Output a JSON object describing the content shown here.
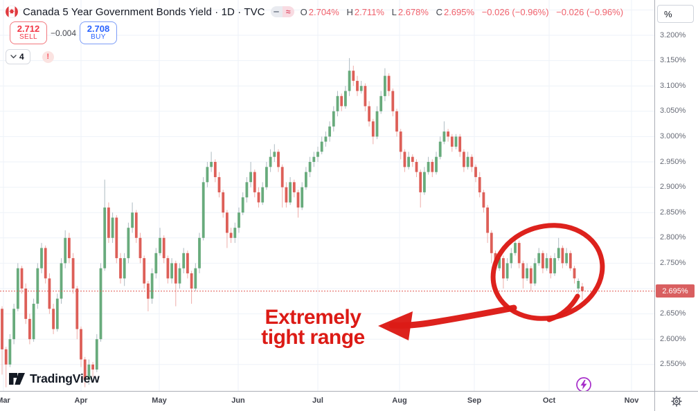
{
  "header": {
    "symbol_title": "Canada 5 Year Government Bonds Yield · 1D · TVC",
    "flag": "canada-flag",
    "ohlc": {
      "o_label": "O",
      "o": "2.704%",
      "h_label": "H",
      "h": "2.711%",
      "l_label": "L",
      "l": "2.678%",
      "c_label": "C",
      "c": "2.695%",
      "change": "−0.026 (−0.96%)",
      "change2": "−0.026 (−0.96%)"
    },
    "sell": {
      "price": "2.712",
      "label": "SELL"
    },
    "spread": "−0.004",
    "buy": {
      "price": "2.708",
      "label": "BUY"
    },
    "drawings_count": "4",
    "alert": "!"
  },
  "annotation": {
    "line1": "Extremely",
    "line2": "tight range"
  },
  "watermark": "TradingView",
  "price_axis": {
    "unit": "%",
    "ticks": [
      "3.200%",
      "3.150%",
      "3.100%",
      "3.050%",
      "3.000%",
      "2.950%",
      "2.900%",
      "2.850%",
      "2.800%",
      "2.750%",
      "2.650%",
      "2.600%",
      "2.550%"
    ],
    "tick_values": [
      3.2,
      3.15,
      3.1,
      3.05,
      3.0,
      2.95,
      2.9,
      2.85,
      2.8,
      2.75,
      2.65,
      2.6,
      2.55
    ],
    "current": "2.695%"
  },
  "time_axis": {
    "months": [
      "Mar",
      "Apr",
      "May",
      "Jun",
      "Jul",
      "Aug",
      "Sep",
      "Oct",
      "Nov"
    ]
  },
  "colors": {
    "up": "#68ab7c",
    "up_wick": "#aebbc2",
    "down": "#dd5f58",
    "down_wick": "#eeaca8",
    "grid": "#eef2f8",
    "axis_text": "#676b76",
    "month_text": "#40434d",
    "current_line": "#e0544e",
    "current_label_bg": "#d95f60",
    "annotation_red": "#dc1b16",
    "sell_red": "#f23645",
    "buy_blue": "#2962ff",
    "value_red": "#f0616c",
    "title_text": "#131722",
    "divider": "#aaadb5",
    "purple": "#a62cc9"
  },
  "chart_data": {
    "type": "candlestick",
    "title": "Canada 5 Year Government Bonds Yield",
    "interval": "1D",
    "exchange": "TVC",
    "unit": "%",
    "current_price": 2.695,
    "last_candle": {
      "open": 2.704,
      "high": 2.711,
      "low": 2.678,
      "close": 2.695,
      "change": -0.026,
      "change_pct": -0.96
    },
    "y_axis": {
      "min": 2.5,
      "max": 3.25,
      "grid_step": 0.05
    },
    "grid_values": [
      3.25,
      3.2,
      3.15,
      3.1,
      3.05,
      3.0,
      2.95,
      2.9,
      2.85,
      2.8,
      2.75,
      2.7,
      2.65,
      2.6,
      2.55
    ],
    "x_range": "Mar to mid-Oct, daily",
    "candles": [
      [
        2.66,
        2.665,
        2.53,
        2.58
      ],
      [
        2.58,
        2.585,
        2.505,
        2.55
      ],
      [
        2.55,
        2.61,
        2.545,
        2.6
      ],
      [
        2.6,
        2.67,
        2.59,
        2.66
      ],
      [
        2.66,
        2.75,
        2.655,
        2.74
      ],
      [
        2.74,
        2.745,
        2.69,
        2.7
      ],
      [
        2.7,
        2.71,
        2.63,
        2.64
      ],
      [
        2.64,
        2.65,
        2.59,
        2.6
      ],
      [
        2.6,
        2.68,
        2.595,
        2.67
      ],
      [
        2.67,
        2.75,
        2.66,
        2.74
      ],
      [
        2.74,
        2.79,
        2.73,
        2.78
      ],
      [
        2.78,
        2.785,
        2.71,
        2.72
      ],
      [
        2.72,
        2.73,
        2.65,
        2.66
      ],
      [
        2.66,
        2.67,
        2.61,
        2.62
      ],
      [
        2.62,
        2.69,
        2.615,
        2.68
      ],
      [
        2.68,
        2.76,
        2.67,
        2.75
      ],
      [
        2.75,
        2.815,
        2.74,
        2.8
      ],
      [
        2.8,
        2.81,
        2.75,
        2.76
      ],
      [
        2.76,
        2.77,
        2.69,
        2.7
      ],
      [
        2.7,
        2.705,
        2.6,
        2.62
      ],
      [
        2.62,
        2.625,
        2.545,
        2.56
      ],
      [
        2.56,
        2.565,
        2.505,
        2.52
      ],
      [
        2.52,
        2.56,
        2.51,
        2.55
      ],
      [
        2.55,
        2.555,
        2.525,
        2.54
      ],
      [
        2.54,
        2.61,
        2.535,
        2.6
      ],
      [
        2.6,
        2.75,
        2.595,
        2.74
      ],
      [
        2.74,
        2.915,
        2.735,
        2.86
      ],
      [
        2.86,
        2.87,
        2.79,
        2.8
      ],
      [
        2.8,
        2.85,
        2.79,
        2.84
      ],
      [
        2.84,
        2.845,
        2.75,
        2.76
      ],
      [
        2.76,
        2.77,
        2.71,
        2.72
      ],
      [
        2.72,
        2.77,
        2.705,
        2.76
      ],
      [
        2.76,
        2.83,
        2.75,
        2.82
      ],
      [
        2.82,
        2.87,
        2.81,
        2.85
      ],
      [
        2.85,
        2.855,
        2.79,
        2.8
      ],
      [
        2.8,
        2.81,
        2.75,
        2.76
      ],
      [
        2.76,
        2.765,
        2.7,
        2.71
      ],
      [
        2.71,
        2.715,
        2.655,
        2.68
      ],
      [
        2.68,
        2.74,
        2.67,
        2.73
      ],
      [
        2.73,
        2.78,
        2.72,
        2.77
      ],
      [
        2.77,
        2.82,
        2.765,
        2.8
      ],
      [
        2.8,
        2.805,
        2.75,
        2.76
      ],
      [
        2.76,
        2.765,
        2.71,
        2.72
      ],
      [
        2.72,
        2.76,
        2.71,
        2.75
      ],
      [
        2.75,
        2.755,
        2.665,
        2.71
      ],
      [
        2.71,
        2.75,
        2.7,
        2.74
      ],
      [
        2.74,
        2.78,
        2.73,
        2.77
      ],
      [
        2.77,
        2.775,
        2.72,
        2.73
      ],
      [
        2.73,
        2.735,
        2.67,
        2.7
      ],
      [
        2.7,
        2.75,
        2.695,
        2.74
      ],
      [
        2.74,
        2.81,
        2.73,
        2.8
      ],
      [
        2.8,
        2.92,
        2.795,
        2.91
      ],
      [
        2.91,
        2.95,
        2.9,
        2.94
      ],
      [
        2.94,
        2.97,
        2.93,
        2.95
      ],
      [
        2.95,
        2.955,
        2.91,
        2.92
      ],
      [
        2.92,
        2.93,
        2.88,
        2.89
      ],
      [
        2.89,
        2.895,
        2.84,
        2.85
      ],
      [
        2.85,
        2.855,
        2.78,
        2.81
      ],
      [
        2.81,
        2.82,
        2.79,
        2.8
      ],
      [
        2.8,
        2.83,
        2.79,
        2.82
      ],
      [
        2.82,
        2.86,
        2.81,
        2.85
      ],
      [
        2.85,
        2.89,
        2.845,
        2.88
      ],
      [
        2.88,
        2.92,
        2.87,
        2.91
      ],
      [
        2.91,
        2.95,
        2.9,
        2.93
      ],
      [
        2.93,
        2.935,
        2.88,
        2.89
      ],
      [
        2.89,
        2.9,
        2.86,
        2.87
      ],
      [
        2.87,
        2.91,
        2.865,
        2.9
      ],
      [
        2.9,
        2.95,
        2.895,
        2.94
      ],
      [
        2.94,
        2.975,
        2.93,
        2.96
      ],
      [
        2.96,
        2.985,
        2.95,
        2.97
      ],
      [
        2.97,
        2.975,
        2.93,
        2.94
      ],
      [
        2.94,
        2.945,
        2.86,
        2.9
      ],
      [
        2.9,
        2.91,
        2.86,
        2.87
      ],
      [
        2.87,
        2.92,
        2.865,
        2.91
      ],
      [
        2.91,
        2.915,
        2.88,
        2.89
      ],
      [
        2.89,
        2.895,
        2.84,
        2.86
      ],
      [
        2.86,
        2.91,
        2.855,
        2.9
      ],
      [
        2.9,
        2.94,
        2.895,
        2.93
      ],
      [
        2.93,
        2.96,
        2.92,
        2.95
      ],
      [
        2.95,
        2.97,
        2.94,
        2.96
      ],
      [
        2.96,
        2.98,
        2.95,
        2.97
      ],
      [
        2.97,
        3.0,
        2.965,
        2.99
      ],
      [
        2.99,
        3.01,
        2.98,
        3.0
      ],
      [
        3.0,
        3.03,
        2.99,
        3.02
      ],
      [
        3.02,
        3.06,
        3.01,
        3.05
      ],
      [
        3.05,
        3.09,
        3.04,
        3.08
      ],
      [
        3.08,
        3.085,
        3.05,
        3.06
      ],
      [
        3.06,
        3.1,
        3.055,
        3.09
      ],
      [
        3.09,
        3.155,
        3.08,
        3.13
      ],
      [
        3.13,
        3.14,
        3.1,
        3.11
      ],
      [
        3.11,
        3.12,
        3.08,
        3.09
      ],
      [
        3.09,
        3.11,
        3.085,
        3.1
      ],
      [
        3.1,
        3.105,
        3.05,
        3.06
      ],
      [
        3.06,
        3.07,
        3.02,
        3.03
      ],
      [
        3.03,
        3.035,
        2.985,
        3.0
      ],
      [
        3.0,
        3.06,
        2.995,
        3.05
      ],
      [
        3.05,
        3.09,
        3.045,
        3.08
      ],
      [
        3.08,
        3.135,
        3.07,
        3.12
      ],
      [
        3.12,
        3.125,
        3.08,
        3.09
      ],
      [
        3.09,
        3.095,
        3.04,
        3.05
      ],
      [
        3.05,
        3.055,
        3.0,
        3.01
      ],
      [
        3.01,
        3.015,
        2.955,
        2.97
      ],
      [
        2.97,
        2.975,
        2.93,
        2.94
      ],
      [
        2.94,
        2.97,
        2.935,
        2.96
      ],
      [
        2.96,
        2.965,
        2.94,
        2.95
      ],
      [
        2.95,
        2.955,
        2.92,
        2.93
      ],
      [
        2.93,
        2.935,
        2.86,
        2.89
      ],
      [
        2.89,
        2.94,
        2.885,
        2.93
      ],
      [
        2.93,
        2.96,
        2.925,
        2.95
      ],
      [
        2.95,
        2.955,
        2.92,
        2.93
      ],
      [
        2.93,
        2.97,
        2.925,
        2.96
      ],
      [
        2.96,
        3.0,
        2.955,
        2.99
      ],
      [
        2.99,
        3.03,
        2.985,
        3.01
      ],
      [
        3.01,
        3.015,
        2.99,
        3.0
      ],
      [
        3.0,
        3.005,
        2.97,
        2.98
      ],
      [
        2.98,
        3.005,
        2.975,
        3.0
      ],
      [
        3.0,
        3.005,
        2.96,
        2.97
      ],
      [
        2.97,
        2.975,
        2.93,
        2.94
      ],
      [
        2.94,
        2.97,
        2.935,
        2.96
      ],
      [
        2.96,
        2.965,
        2.93,
        2.94
      ],
      [
        2.94,
        2.945,
        2.91,
        2.92
      ],
      [
        2.92,
        2.93,
        2.88,
        2.89
      ],
      [
        2.89,
        2.895,
        2.85,
        2.86
      ],
      [
        2.86,
        2.865,
        2.79,
        2.81
      ],
      [
        2.81,
        2.815,
        2.75,
        2.77
      ],
      [
        2.77,
        2.775,
        2.73,
        2.74
      ],
      [
        2.74,
        2.77,
        2.735,
        2.76
      ],
      [
        2.76,
        2.765,
        2.7,
        2.72
      ],
      [
        2.72,
        2.76,
        2.715,
        2.75
      ],
      [
        2.75,
        2.78,
        2.74,
        2.77
      ],
      [
        2.77,
        2.805,
        2.765,
        2.79
      ],
      [
        2.79,
        2.795,
        2.74,
        2.75
      ],
      [
        2.75,
        2.755,
        2.7,
        2.72
      ],
      [
        2.72,
        2.75,
        2.715,
        2.74
      ],
      [
        2.74,
        2.745,
        2.695,
        2.71
      ],
      [
        2.71,
        2.76,
        2.705,
        2.75
      ],
      [
        2.75,
        2.78,
        2.745,
        2.77
      ],
      [
        2.77,
        2.775,
        2.73,
        2.74
      ],
      [
        2.74,
        2.77,
        2.735,
        2.76
      ],
      [
        2.76,
        2.765,
        2.72,
        2.73
      ],
      [
        2.73,
        2.77,
        2.725,
        2.76
      ],
      [
        2.76,
        2.8,
        2.755,
        2.78
      ],
      [
        2.78,
        2.785,
        2.74,
        2.75
      ],
      [
        2.75,
        2.78,
        2.745,
        2.77
      ],
      [
        2.77,
        2.775,
        2.735,
        2.74
      ],
      [
        2.74,
        2.745,
        2.71,
        2.72
      ],
      [
        2.7,
        2.72,
        2.69,
        2.715
      ],
      [
        2.704,
        2.711,
        2.678,
        2.695
      ]
    ]
  }
}
